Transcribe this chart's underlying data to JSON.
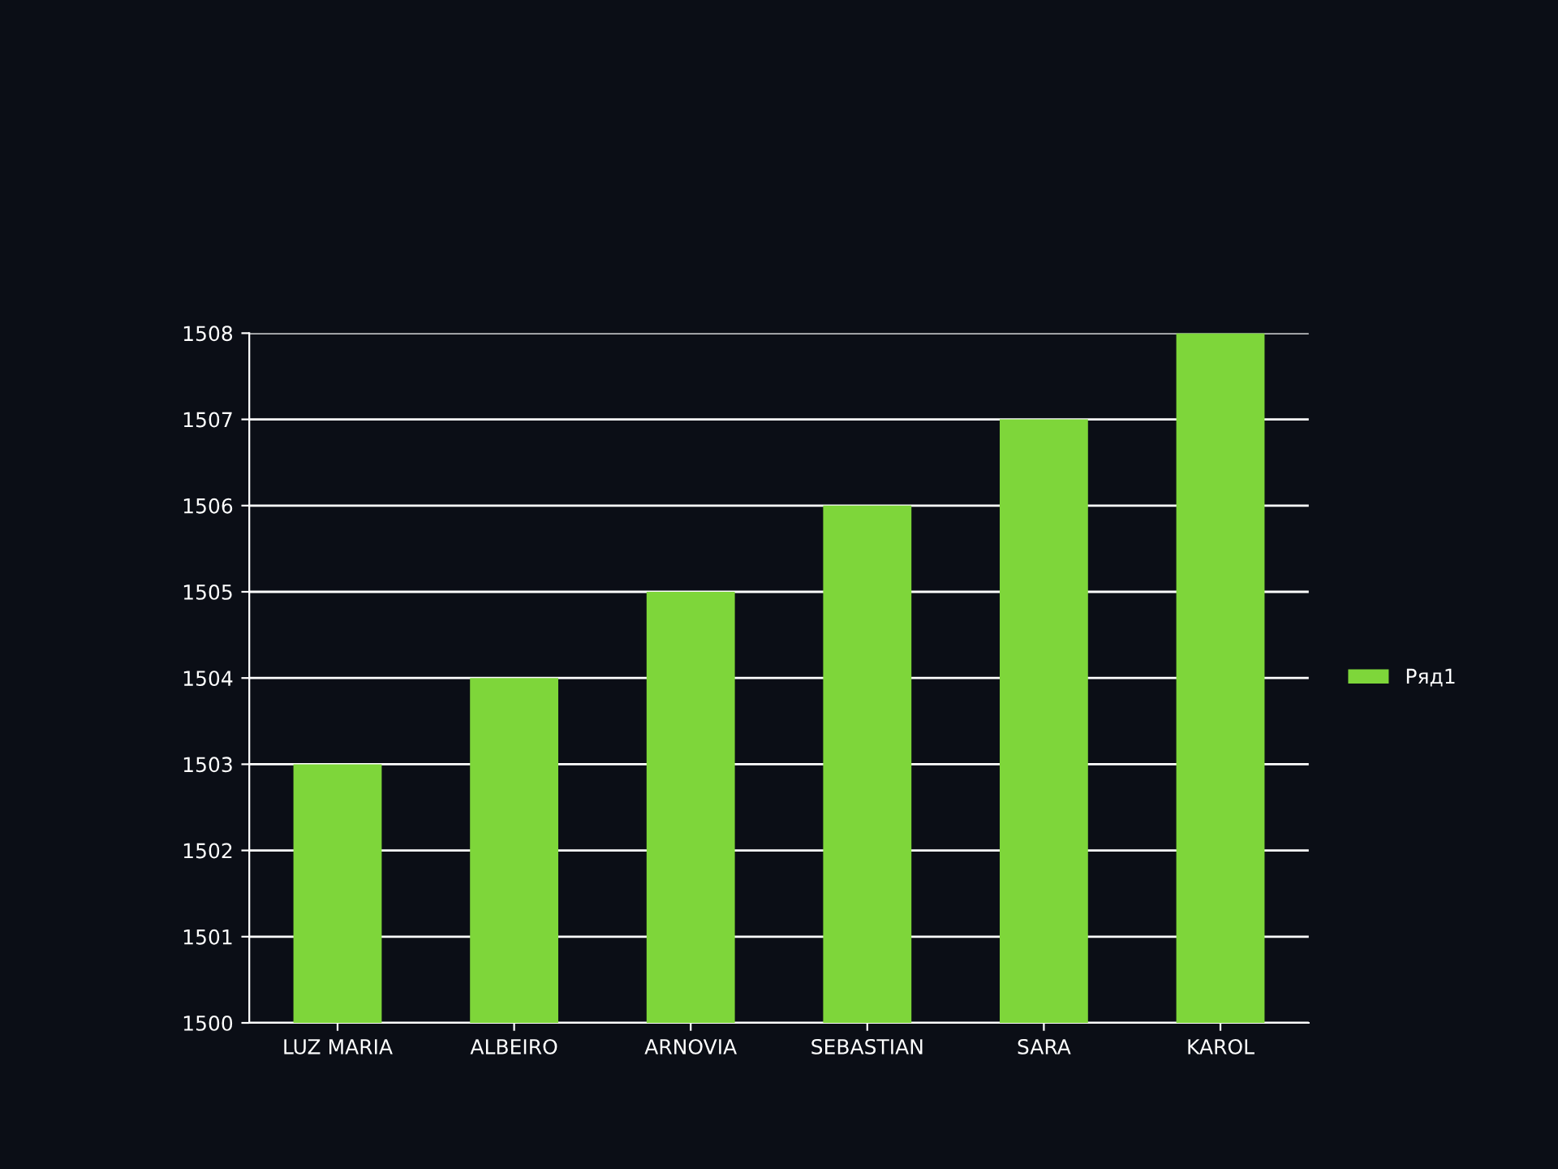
{
  "chart_data": {
    "type": "bar",
    "categories": [
      "LUZ MARIA",
      "ALBEIRO",
      "ARNOVIA",
      "SEBASTIAN",
      "SARA",
      "KAROL"
    ],
    "series": [
      {
        "name": "Ряд1",
        "color": "#7ed63a",
        "values": [
          1503,
          1504,
          1505,
          1506,
          1507,
          1508
        ]
      }
    ],
    "ylim": [
      1500,
      1508
    ],
    "yticks": [
      1500,
      1501,
      1502,
      1503,
      1504,
      1505,
      1506,
      1507,
      1508
    ],
    "grid": "y",
    "legend": "right"
  }
}
